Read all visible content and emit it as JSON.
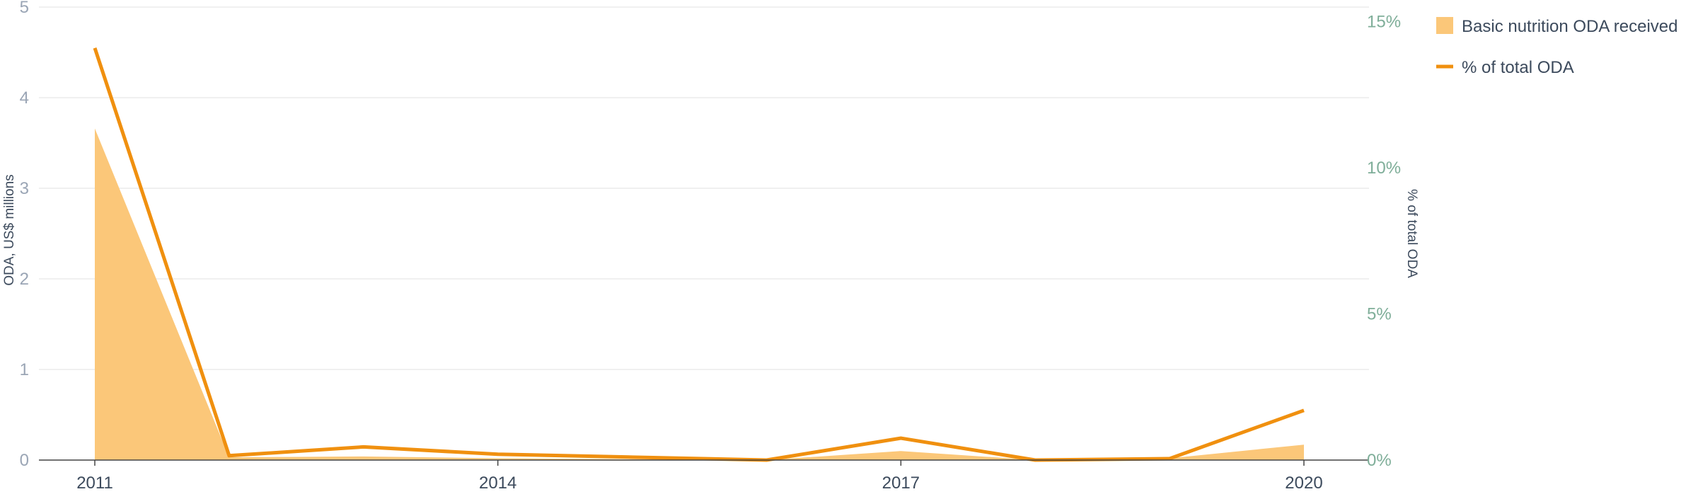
{
  "chart_data": {
    "type": "area",
    "x": [
      2011,
      2012,
      2013,
      2014,
      2015,
      2016,
      2017,
      2018,
      2019,
      2020
    ],
    "series": [
      {
        "name": "Basic nutrition ODA received",
        "type": "area",
        "axis": "left",
        "color": "#fbc779",
        "values": [
          3.66,
          0.03,
          0.04,
          0.02,
          0.01,
          0.0,
          0.1,
          0.0,
          0.02,
          0.17
        ]
      },
      {
        "name": "% of total ODA",
        "type": "line",
        "axis": "right",
        "color": "#f0900f",
        "values": [
          14.1,
          0.15,
          0.45,
          0.2,
          0.1,
          0.0,
          0.75,
          0.0,
          0.05,
          1.7
        ]
      }
    ],
    "x_ticks": [
      "2011",
      "2014",
      "2017",
      "2020"
    ],
    "x_tick_values": [
      2011,
      2014,
      2017,
      2020
    ],
    "y_left": {
      "label": "ODA, US$ millions",
      "range": [
        0,
        5
      ],
      "ticks": [
        "0",
        "1",
        "2",
        "3",
        "4",
        "5"
      ],
      "tick_values": [
        0,
        1,
        2,
        3,
        4,
        5
      ]
    },
    "y_right": {
      "label": "% of total ODA",
      "range": [
        0,
        15.5
      ],
      "ticks": [
        "0%",
        "5%",
        "10%",
        "15%"
      ],
      "tick_values": [
        0,
        5,
        10,
        15
      ]
    },
    "grid": true,
    "legend_position": "top-right",
    "legend": [
      {
        "label": "Basic nutrition ODA received",
        "symbol": "square"
      },
      {
        "label": "% of total ODA",
        "symbol": "line"
      }
    ],
    "colors": {
      "grid": "#ececec",
      "axis_line": "#444444",
      "left_ticks": "#9aa5b5",
      "right_ticks": "#7fae99",
      "text": "#3c4a5c"
    }
  }
}
